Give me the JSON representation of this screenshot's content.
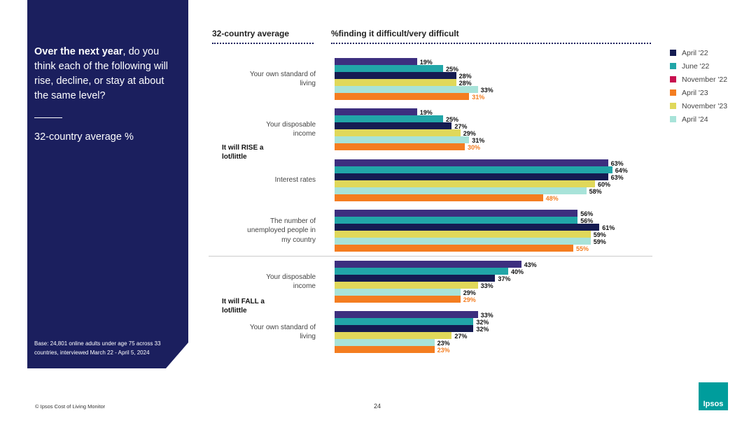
{
  "panel": {
    "question_bold": "Over the next year",
    "question_rest": ", do you think each of the following will rise, decline, or stay at about the same level?",
    "subtitle": "32-country average %",
    "base": "Base: 24,801 online adults under age 75 across 33 countries, interviewed March 22 - April 5, 2024"
  },
  "footer": {
    "source": "© Ipsos Cost of Living Monitor",
    "page": "24",
    "logo": "Ipsos"
  },
  "chart_data": {
    "type": "bar",
    "orientation": "horizontal",
    "title": "%finding it difficult/very difficult",
    "column_header": "32-country average",
    "xlim": [
      0,
      100
    ],
    "series": [
      {
        "name": "April '22",
        "color": "#3d2f7f"
      },
      {
        "name": "June '22",
        "color": "#21a6a8"
      },
      {
        "name": "November '22",
        "color": "#151c52"
      },
      {
        "name": "April '23",
        "color": "#e0d85a"
      },
      {
        "name": "November '23",
        "color": "#a8e3d9"
      },
      {
        "name": "April '24",
        "color": "#f47d20"
      }
    ],
    "legend": [
      {
        "name": "April '22",
        "color": "#151c52"
      },
      {
        "name": "June '22",
        "color": "#21a6a8"
      },
      {
        "name": "November '22",
        "color": "#c8104f"
      },
      {
        "name": "April '23",
        "color": "#f47d20"
      },
      {
        "name": "November '23",
        "color": "#e0d85a"
      },
      {
        "name": "April '24",
        "color": "#a8e3d9"
      }
    ],
    "sections": [
      {
        "label": "It will RISE a lot/little",
        "groups": [
          {
            "label": "Your own standard of living",
            "values": [
              19,
              25,
              28,
              28,
              33,
              31
            ]
          },
          {
            "label": "Your disposable income",
            "values": [
              19,
              25,
              27,
              29,
              31,
              30
            ]
          },
          {
            "label": "Interest rates",
            "values": [
              63,
              64,
              63,
              60,
              58,
              48
            ]
          },
          {
            "label": "The number of unemployed people in my country",
            "values": [
              56,
              56,
              61,
              59,
              59,
              55
            ]
          }
        ]
      },
      {
        "label": "It will FALL a lot/little",
        "groups": [
          {
            "label": "Your disposable income",
            "values": [
              43,
              40,
              37,
              33,
              29,
              29
            ]
          },
          {
            "label": "Your own standard of living",
            "values": [
              33,
              32,
              32,
              27,
              23,
              23
            ]
          }
        ]
      }
    ]
  }
}
